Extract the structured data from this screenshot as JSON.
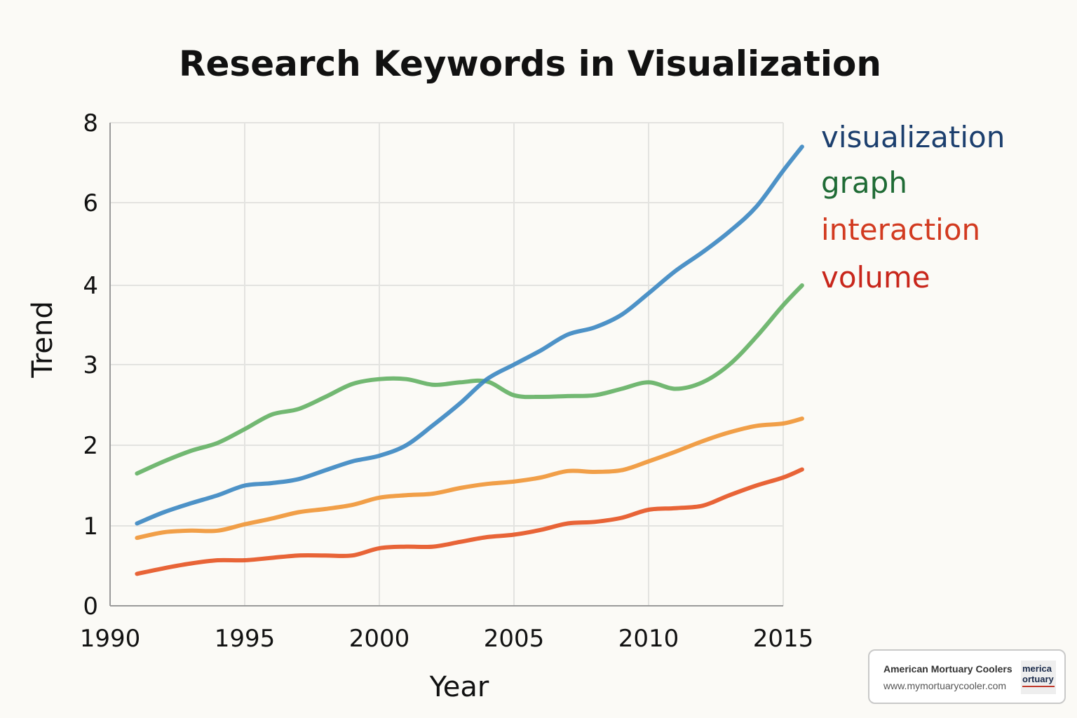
{
  "chart_data": {
    "type": "line",
    "title": "Research Keywords in Visualization",
    "xlabel": "Year",
    "ylabel": "Trend",
    "xlim": [
      1990,
      2015
    ],
    "x_ticks": [
      "1990",
      "1995",
      "2000",
      "2005",
      "2010",
      "2015"
    ],
    "y_ticks": [
      "0",
      "1",
      "2",
      "3",
      "4",
      "6",
      "8"
    ],
    "y_scale": "piecewise (0-4 step 1, then 4-8 step 2)",
    "grid": true,
    "legend": "right (direct labels)",
    "x": [
      1991,
      1992,
      1993,
      1994,
      1995,
      1996,
      1997,
      1998,
      1999,
      2000,
      2001,
      2002,
      2003,
      2004,
      2005,
      2006,
      2007,
      2008,
      2009,
      2010,
      2011,
      2012,
      2013,
      2014,
      2015,
      2015.7
    ],
    "series": [
      {
        "name": "visualization",
        "color": "#3a86c2",
        "label_color": "#1c3f6e",
        "values": [
          1.03,
          1.17,
          1.28,
          1.38,
          1.5,
          1.53,
          1.58,
          1.69,
          1.8,
          1.87,
          2.0,
          2.25,
          2.52,
          2.82,
          3.0,
          3.18,
          3.38,
          3.47,
          3.63,
          3.9,
          4.35,
          4.8,
          5.3,
          5.9,
          6.8,
          7.4
        ]
      },
      {
        "name": "graph",
        "color": "#63b064",
        "label_color": "#1f6b35",
        "values": [
          1.65,
          1.8,
          1.93,
          2.03,
          2.2,
          2.38,
          2.45,
          2.6,
          2.76,
          2.82,
          2.82,
          2.75,
          2.78,
          2.79,
          2.62,
          2.6,
          2.61,
          2.62,
          2.7,
          2.78,
          2.7,
          2.78,
          3.0,
          3.35,
          3.75,
          4.0
        ]
      },
      {
        "name": "interaction",
        "color": "#ef9535",
        "label_color": "#d23a20",
        "values": [
          0.85,
          0.92,
          0.94,
          0.94,
          1.02,
          1.09,
          1.17,
          1.21,
          1.26,
          1.35,
          1.38,
          1.4,
          1.47,
          1.52,
          1.55,
          1.6,
          1.68,
          1.67,
          1.69,
          1.8,
          1.92,
          2.05,
          2.16,
          2.24,
          2.27,
          2.33
        ]
      },
      {
        "name": "volume",
        "color": "#e65322",
        "label_color": "#c8261b",
        "values": [
          0.4,
          0.47,
          0.53,
          0.57,
          0.57,
          0.6,
          0.63,
          0.63,
          0.63,
          0.72,
          0.74,
          0.74,
          0.8,
          0.86,
          0.89,
          0.95,
          1.03,
          1.05,
          1.1,
          1.2,
          1.22,
          1.25,
          1.38,
          1.5,
          1.6,
          1.7
        ]
      }
    ]
  },
  "watermark": {
    "name": "American Mortuary Coolers",
    "url": "www.mymortuarycooler.com"
  }
}
